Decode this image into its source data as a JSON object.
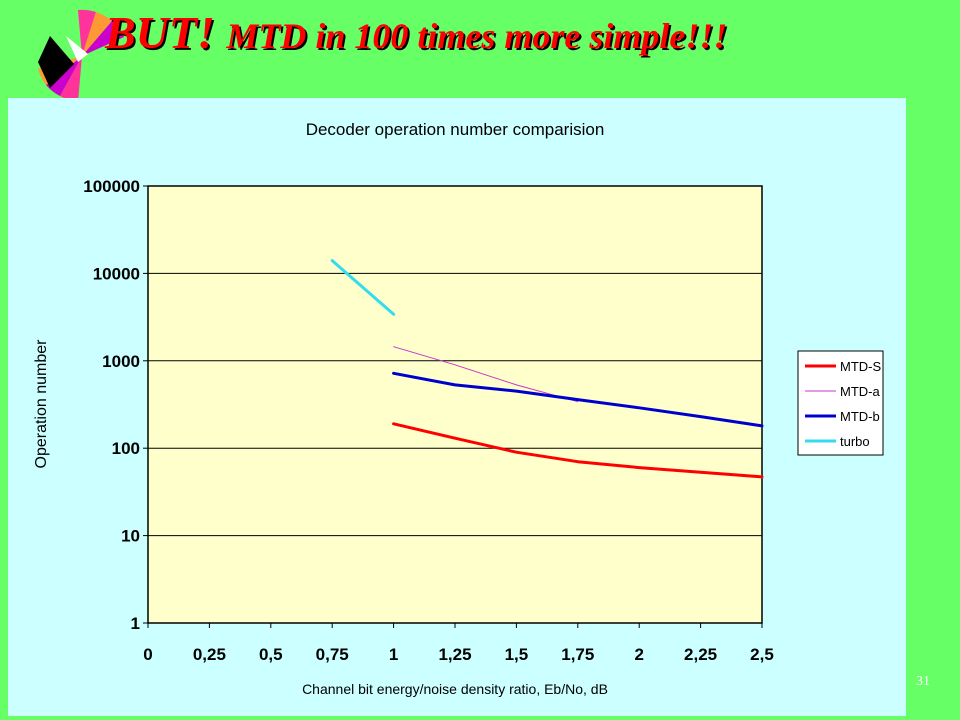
{
  "slide": {
    "title_part1": "BUT! ",
    "title_part2": "MTD in 100 times more simple!!!",
    "page_number": "31"
  },
  "colors": {
    "background": "#66ff66",
    "panel": "#ccffff",
    "plot_area": "#ffffcc",
    "title": "#ff0000"
  },
  "chart_data": {
    "type": "line",
    "title": "Decoder   operation   number   comparision",
    "xlabel": "Channel  bit  energy/noise  density  ratio,  Eb/No,  dB",
    "ylabel": "Operation number",
    "xlim": [
      0,
      2.5
    ],
    "ylim": [
      1,
      100000
    ],
    "yscale": "log",
    "grid": "horizontal",
    "legend_position": "right",
    "x_ticks": [
      0,
      0.25,
      0.5,
      0.75,
      1,
      1.25,
      1.5,
      1.75,
      2,
      2.25,
      2.5
    ],
    "x_tick_labels": [
      "0",
      "0,25",
      "0,5",
      "0,75",
      "1",
      "1,25",
      "1,5",
      "1,75",
      "2",
      "2,25",
      "2,5"
    ],
    "y_ticks": [
      1,
      10,
      100,
      1000,
      10000,
      100000
    ],
    "y_tick_labels": [
      "1",
      "10",
      "100",
      "1000",
      "10000",
      "100000"
    ],
    "series": [
      {
        "name": "MTD-S",
        "color": "#ff0000",
        "width": 3,
        "x": [
          1,
          1.25,
          1.5,
          1.75,
          2,
          2.25,
          2.5
        ],
        "y": [
          190,
          130,
          90,
          70,
          60,
          53,
          47
        ]
      },
      {
        "name": "MTD-a",
        "color": "#cc33cc",
        "width": 1,
        "x": [
          1,
          1.25,
          1.5,
          1.75
        ],
        "y": [
          1450,
          900,
          530,
          340
        ]
      },
      {
        "name": "MTD-b",
        "color": "#0000cc",
        "width": 3,
        "x": [
          1,
          1.25,
          1.5,
          1.75,
          2,
          2.25,
          2.5
        ],
        "y": [
          720,
          530,
          450,
          360,
          290,
          230,
          180
        ]
      },
      {
        "name": "turbo",
        "color": "#33ddee",
        "width": 3,
        "x": [
          0.75,
          1
        ],
        "y": [
          14000,
          3400
        ]
      }
    ]
  }
}
